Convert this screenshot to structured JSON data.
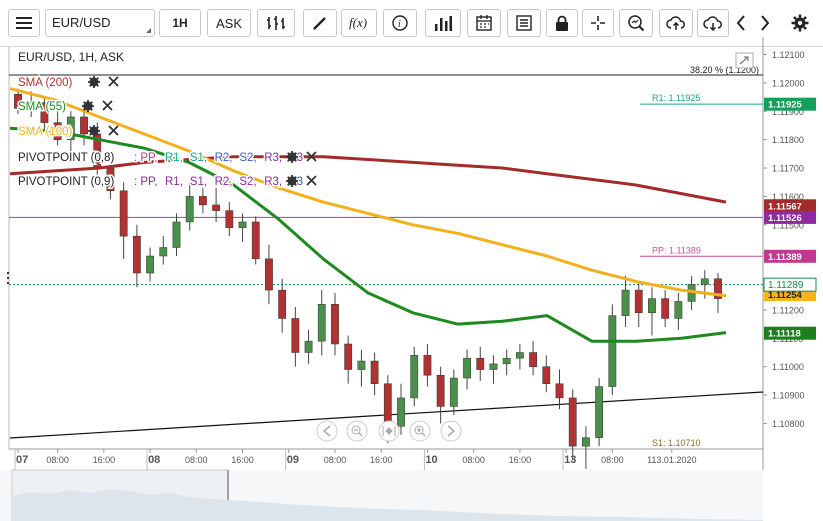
{
  "toolbar": {
    "symbol": "EUR/USD",
    "timeframe": "1H",
    "price_side": "ASK",
    "icons": [
      "menu-icon",
      "bar-style-icon",
      "draw-icon",
      "function-icon",
      "info-icon",
      "volume-bars-icon",
      "calendar-icon",
      "report-icon",
      "lock-icon",
      "crosshair-icon",
      "zoom-icon",
      "upload-icon",
      "download-icon",
      "arrow-left-icon",
      "arrow-right-icon",
      "gear-icon"
    ]
  },
  "chart_data": {
    "type": "candlestick",
    "title": "EUR/USD, 1H, ASK",
    "y_range": [
      1.1071,
      1.1213
    ],
    "y_ticks": [
      "1.12100",
      "1.12000",
      "1.11900",
      "1.11800",
      "1.11700",
      "1.11600",
      "1.11500",
      "1.11400",
      "1.11300",
      "1.11200",
      "1.11100",
      "1.11000",
      "1.10900",
      "1.10800"
    ],
    "x_ticks": [
      "07",
      "08:00",
      "16:00",
      "08",
      "08:00",
      "16:00",
      "09",
      "08:00",
      "16:00",
      "10",
      "08:00",
      "16:00",
      "13",
      "08:00",
      "113.01.2020"
    ],
    "current_price": 1.11289,
    "current_price_label": "1.11289",
    "fib_label": "38.20 % (1.1200)",
    "levels": [
      {
        "name": "R1",
        "text": "R1: 1.11925",
        "value": 1.11925,
        "color": "#17a589",
        "tag": "1.11925",
        "tag_bg": "#14a05a"
      },
      {
        "name": "SMA200",
        "text": "",
        "value": 1.11567,
        "color": "#a52a2a",
        "tag": "1.11567",
        "tag_bg": "#a52a2a"
      },
      {
        "name": "PP-line",
        "text": "",
        "value": 1.11526,
        "color": "#8e44ad",
        "tag": "1.11526",
        "tag_bg": "#8e2a9e"
      },
      {
        "name": "PP",
        "text": "PP: 1.11389",
        "value": 1.11389,
        "color": "#cc4fa0",
        "tag": "1.11389",
        "tag_bg": "#c0398f"
      },
      {
        "name": "SMA100",
        "text": "",
        "value": 1.11254,
        "color": "#f0b41c",
        "tag": "1.11254",
        "tag_bg": "#f5b51a"
      },
      {
        "name": "SMA55",
        "text": "",
        "value": 1.11118,
        "color": "#1e8a1e",
        "tag": "1.11118",
        "tag_bg": "#1e7e1e"
      },
      {
        "name": "S1",
        "text": "S1: 1.10710",
        "value": 1.1071,
        "color": "#8a6a2a",
        "tag": "",
        "tag_bg": ""
      }
    ],
    "legend": [
      {
        "label": "SMA (200)",
        "color": "#b03030"
      },
      {
        "label": "SMA (55)",
        "color": "#1f8a1f"
      },
      {
        "label": "SMA (100)",
        "color": "#f0b41c"
      },
      {
        "label": "PIVOTPOINT (0,8)",
        "color": "#222222",
        "suffix": [
          {
            "t": ": PP,",
            "c": "#c0398f"
          },
          {
            "t": " R1,",
            "c": "#17a589"
          },
          {
            "t": " S1,",
            "c": "#17a589"
          },
          {
            "t": " R2,",
            "c": "#3b5bc5"
          },
          {
            "t": " S2,",
            "c": "#3b5bc5"
          },
          {
            "t": " R3,",
            "c": "#8e2a9e"
          },
          {
            "t": " S3",
            "c": "#8e2a9e"
          }
        ]
      },
      {
        "label": "PIVOTPOINT (0,9)",
        "color": "#222222",
        "suffix": [
          {
            "t": ": PP,",
            "c": "#8e2a9e"
          },
          {
            "t": " R1,",
            "c": "#8e2a9e"
          },
          {
            "t": " S1,",
            "c": "#8e2a9e"
          },
          {
            "t": " R2,",
            "c": "#8e2a9e"
          },
          {
            "t": " S2,",
            "c": "#8e2a9e"
          },
          {
            "t": " R3,",
            "c": "#8e2a9e"
          },
          {
            "t": " S3",
            "c": "#3b5bc5"
          }
        ]
      }
    ],
    "sma200": [
      1.1168,
      1.1169,
      1.117,
      1.1172,
      1.1173,
      1.1174,
      1.1174,
      1.1174,
      1.1173,
      1.1172,
      1.1171,
      1.117,
      1.1168,
      1.1166,
      1.1164,
      1.1161,
      1.1158
    ],
    "sma100": [
      1.1198,
      1.1194,
      1.1188,
      1.1182,
      1.1176,
      1.1169,
      1.1163,
      1.1158,
      1.1154,
      1.115,
      1.1147,
      1.1143,
      1.1139,
      1.1134,
      1.113,
      1.1127,
      1.1125
    ],
    "sma55": [
      1.1184,
      1.1183,
      1.118,
      1.1177,
      1.1172,
      1.1164,
      1.1152,
      1.1138,
      1.1126,
      1.1119,
      1.1115,
      1.1116,
      1.1118,
      1.1109,
      1.1109,
      1.111,
      1.1112
    ],
    "candles": [
      [
        1.1196,
        1.1198,
        1.1189,
        1.1191
      ],
      [
        1.1191,
        1.1197,
        1.1188,
        1.1193
      ],
      [
        1.1193,
        1.1195,
        1.1183,
        1.1186
      ],
      [
        1.1186,
        1.1192,
        1.1178,
        1.118
      ],
      [
        1.118,
        1.119,
        1.1175,
        1.1188
      ],
      [
        1.1188,
        1.1192,
        1.1178,
        1.1182
      ],
      [
        1.1182,
        1.1186,
        1.1165,
        1.117
      ],
      [
        1.117,
        1.1175,
        1.1159,
        1.1162
      ],
      [
        1.1162,
        1.1165,
        1.1138,
        1.1146
      ],
      [
        1.1146,
        1.115,
        1.1128,
        1.1133
      ],
      [
        1.1133,
        1.1142,
        1.113,
        1.1139
      ],
      [
        1.1139,
        1.1146,
        1.1136,
        1.1142
      ],
      [
        1.1142,
        1.1154,
        1.1139,
        1.1151
      ],
      [
        1.1151,
        1.1164,
        1.1148,
        1.116
      ],
      [
        1.116,
        1.1165,
        1.1154,
        1.1157
      ],
      [
        1.1157,
        1.1163,
        1.1151,
        1.1155
      ],
      [
        1.1155,
        1.1158,
        1.1146,
        1.1149
      ],
      [
        1.1149,
        1.1154,
        1.1144,
        1.1151
      ],
      [
        1.1151,
        1.1153,
        1.1136,
        1.1138
      ],
      [
        1.1138,
        1.1143,
        1.1122,
        1.1127
      ],
      [
        1.1127,
        1.1131,
        1.1112,
        1.1117
      ],
      [
        1.1117,
        1.1121,
        1.11,
        1.1105
      ],
      [
        1.1105,
        1.1113,
        1.1101,
        1.1109
      ],
      [
        1.1109,
        1.1127,
        1.1104,
        1.1122
      ],
      [
        1.1122,
        1.1126,
        1.1104,
        1.1108
      ],
      [
        1.1108,
        1.1111,
        1.1094,
        1.1099
      ],
      [
        1.1099,
        1.1106,
        1.1093,
        1.1102
      ],
      [
        1.1102,
        1.1105,
        1.109,
        1.1094
      ],
      [
        1.1094,
        1.1097,
        1.1073,
        1.1079
      ],
      [
        1.1079,
        1.1094,
        1.1076,
        1.1089
      ],
      [
        1.1089,
        1.1107,
        1.1086,
        1.1104
      ],
      [
        1.1104,
        1.1108,
        1.1093,
        1.1097
      ],
      [
        1.1097,
        1.11,
        1.108,
        1.1086
      ],
      [
        1.1086,
        1.1099,
        1.1083,
        1.1096
      ],
      [
        1.1096,
        1.1106,
        1.1092,
        1.1103
      ],
      [
        1.1103,
        1.1107,
        1.1095,
        1.1099
      ],
      [
        1.1099,
        1.1104,
        1.1094,
        1.1101
      ],
      [
        1.1101,
        1.1106,
        1.1097,
        1.1103
      ],
      [
        1.1103,
        1.1108,
        1.1099,
        1.1105
      ],
      [
        1.1105,
        1.1109,
        1.1097,
        1.11
      ],
      [
        1.11,
        1.1104,
        1.1091,
        1.1094
      ],
      [
        1.1094,
        1.1099,
        1.1085,
        1.1089
      ],
      [
        1.1089,
        1.1092,
        1.1067,
        1.1072
      ],
      [
        1.1072,
        1.1079,
        1.1064,
        1.1075
      ],
      [
        1.1075,
        1.1096,
        1.1072,
        1.1093
      ],
      [
        1.1093,
        1.1122,
        1.109,
        1.1118
      ],
      [
        1.1118,
        1.1132,
        1.1114,
        1.1127
      ],
      [
        1.1127,
        1.113,
        1.1114,
        1.1119
      ],
      [
        1.1119,
        1.1128,
        1.1111,
        1.1124
      ],
      [
        1.1124,
        1.1127,
        1.1114,
        1.1117
      ],
      [
        1.1117,
        1.1126,
        1.1113,
        1.1123
      ],
      [
        1.1123,
        1.1132,
        1.112,
        1.1129
      ],
      [
        1.1129,
        1.1134,
        1.1124,
        1.1131
      ],
      [
        1.1131,
        1.1133,
        1.1119,
        1.1124
      ]
    ]
  }
}
